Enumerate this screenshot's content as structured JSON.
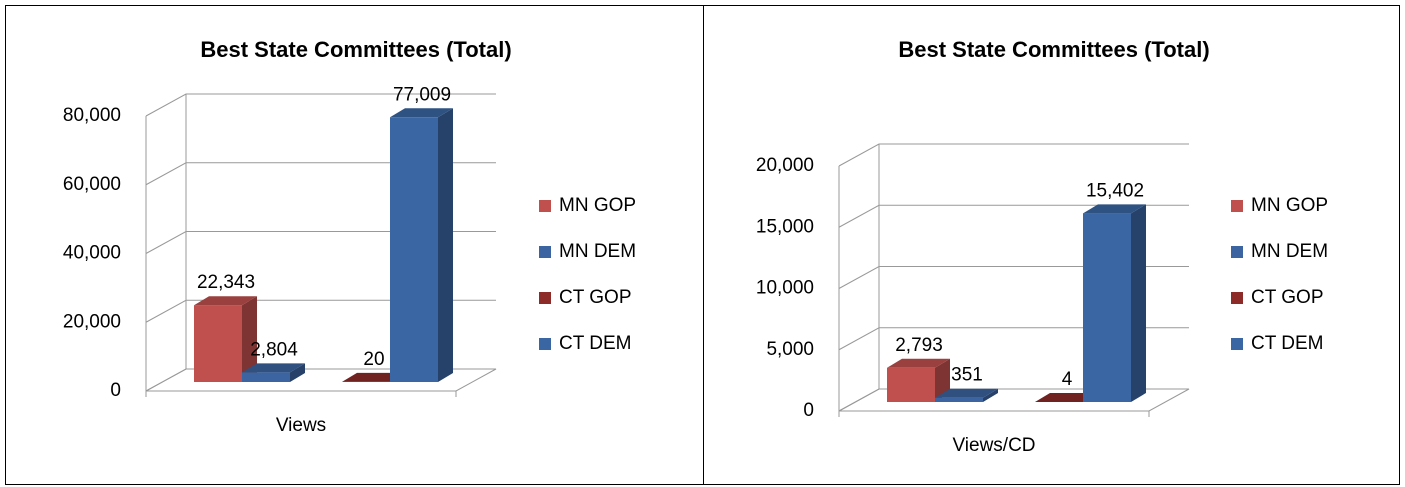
{
  "chart_data": [
    {
      "type": "bar",
      "title": "Best State Committees (Total)",
      "categories": [
        "Views"
      ],
      "series": [
        {
          "name": "MN GOP",
          "color": "#c0504d",
          "values": [
            22343
          ],
          "value_labels": [
            "22,343"
          ]
        },
        {
          "name": "MN DEM",
          "color": "#3c64a0",
          "values": [
            2804
          ],
          "value_labels": [
            "2,804"
          ]
        },
        {
          "name": "CT GOP",
          "color": "#8c2b28",
          "values": [
            20
          ]
        },
        {
          "name": "CT DEM",
          "color": "#3a66a3",
          "values": [
            77009
          ],
          "value_labels": [
            "77,009"
          ]
        }
      ],
      "ylim": [
        0,
        80000
      ],
      "yticks": [
        0,
        {
          "value": 20000,
          "label": "20,000"
        },
        {
          "value": 40000,
          "label": "40,000"
        },
        {
          "value": 60000,
          "label": "60,000"
        },
        {
          "value": 80000,
          "label": "80,000"
        }
      ],
      "grid": true,
      "legend": "right"
    },
    {
      "type": "bar",
      "title": "Best State Committees (Total)",
      "categories": [
        "Views/CD"
      ],
      "series": [
        {
          "name": "MN GOP",
          "color": "#c0504d",
          "values": [
            2793
          ],
          "value_labels": [
            "2,793"
          ]
        },
        {
          "name": "MN DEM",
          "color": "#3c64a0",
          "values": [
            351
          ]
        },
        {
          "name": "CT GOP",
          "color": "#8c2b28",
          "values": [
            4
          ]
        },
        {
          "name": "CT DEM",
          "color": "#3a66a3",
          "values": [
            15402
          ],
          "value_labels": [
            "15,402"
          ]
        }
      ],
      "ylim": [
        0,
        20000
      ],
      "yticks": [
        0,
        {
          "value": 5000,
          "label": "5,000"
        },
        {
          "value": 10000,
          "label": "10,000"
        },
        {
          "value": 15000,
          "label": "15,000"
        },
        {
          "value": 20000,
          "label": "20,000"
        }
      ],
      "grid": true,
      "legend": "right"
    }
  ]
}
